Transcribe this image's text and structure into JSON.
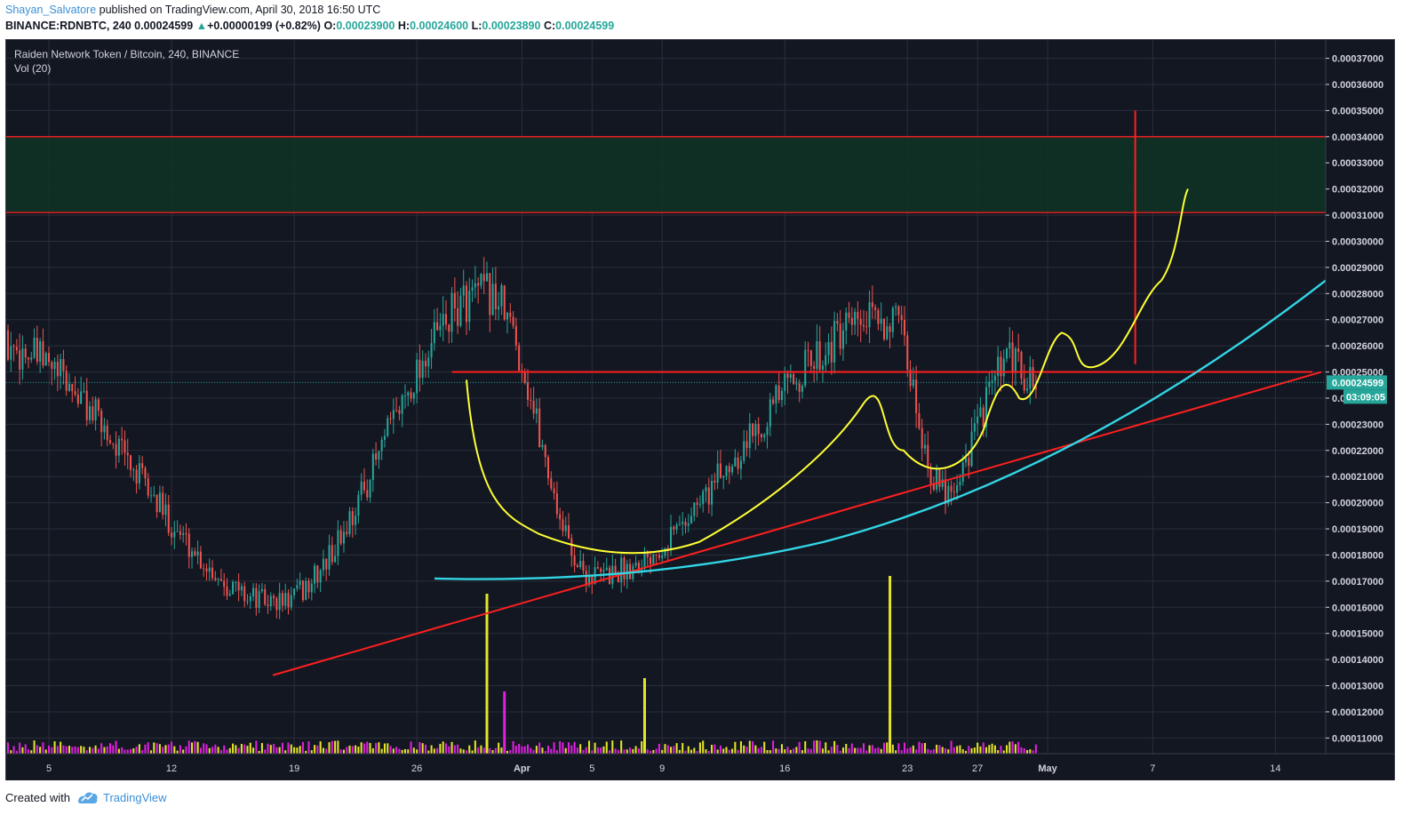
{
  "header": {
    "author": "Shayan_Salvatore",
    "published": " published on TradingView.com, April 30, 2018 16:50 UTC",
    "symbol": "BINANCE:RDNBTC, 240",
    "last": "0.00024599",
    "change": "+0.00000199 (+0.82%)",
    "open_label": "O:",
    "open": "0.00023900",
    "high_label": "H:",
    "high": "0.00024600",
    "low_label": "L:",
    "low": "0.00023890",
    "close_label": "C:",
    "close": "0.00024599"
  },
  "footer": {
    "created_with": "Created with",
    "brand": "TradingView"
  },
  "colors": {
    "background": "#131722",
    "grid": "#2a2e39",
    "up": "#26a69a",
    "down": "#ef5350",
    "red_line": "#ff1f1f",
    "yellow": "#ffff33",
    "cyan": "#33d6e6",
    "zone_fill": "#0f3324",
    "vol_up": "#e5e52a",
    "vol_down": "#e020e0"
  },
  "chart_data": {
    "type": "candlestick",
    "title": "Raiden Network Token / Bitcoin, 240, BINANCE",
    "indicator": "Vol (20)",
    "ylim": [
      0.000104,
      0.000377
    ],
    "y_ticks": [
      "0.00011000",
      "0.00012000",
      "0.00013000",
      "0.00014000",
      "0.00015000",
      "0.00016000",
      "0.00017000",
      "0.00018000",
      "0.00019000",
      "0.00020000",
      "0.00021000",
      "0.00022000",
      "0.00023000",
      "0.00024000",
      "0.00025000",
      "0.00026000",
      "0.00027000",
      "0.00028000",
      "0.00029000",
      "0.00030000",
      "0.00031000",
      "0.00032000",
      "0.00033000",
      "0.00034000",
      "0.00035000",
      "0.00036000",
      "0.00037000"
    ],
    "x_ticks": [
      "5",
      "12",
      "19",
      "26",
      "Apr",
      "5",
      "9",
      "16",
      "23",
      "27",
      "May",
      "7",
      "14"
    ],
    "last_price_label": "0.00024599",
    "countdown_label": "03:09:05",
    "last_price": 0.00024599,
    "key_points": [
      {
        "date": "2018-03-02",
        "price": 0.00026
      },
      {
        "date": "2018-03-18",
        "price": 0.000162
      },
      {
        "date": "2018-03-30",
        "price": 0.00028
      },
      {
        "date": "2018-04-05",
        "price": 0.000172
      },
      {
        "date": "2018-04-22",
        "price": 0.00027
      },
      {
        "date": "2018-04-25",
        "price": 0.000205
      },
      {
        "date": "2018-04-29",
        "price": 0.000254
      },
      {
        "date": "2018-04-30",
        "price": 0.00024599
      }
    ],
    "annotations": {
      "target_zone": [
        0.000311,
        0.00034
      ],
      "resistance_level": 0.00025,
      "target_marker_top": 0.00035
    }
  }
}
